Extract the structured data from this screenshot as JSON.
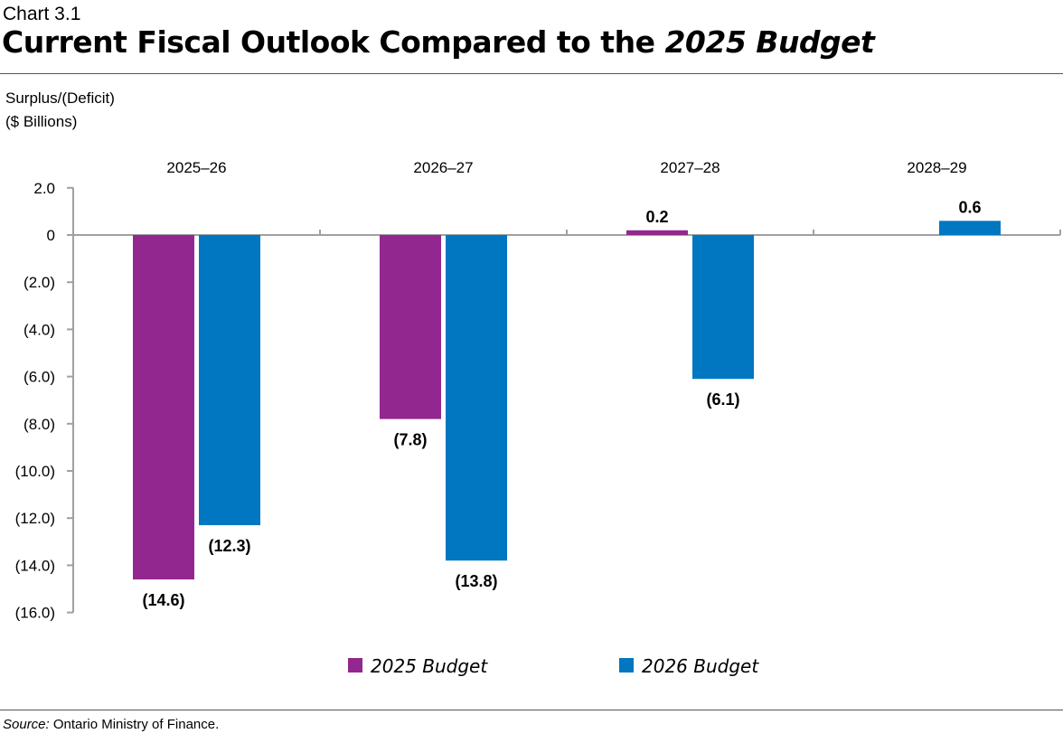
{
  "header": {
    "chart_label": "Chart 3.1",
    "title_prefix": "Current Fiscal Outlook Compared to the ",
    "title_italic": "2025 Budget"
  },
  "footer": {
    "source_label": "Source:",
    "source_text": " Ontario Ministry of Finance."
  },
  "chart_data": {
    "type": "bar",
    "title": "Current Fiscal Outlook Compared to the 2025 Budget",
    "ylabel_lines": [
      "Surplus/(Deficit)",
      "($ Billions)"
    ],
    "categories": [
      "2025–26",
      "2026–27",
      "2027–28",
      "2028–29"
    ],
    "series": [
      {
        "name": "2025 Budget",
        "color": "#92278f",
        "values": [
          -14.6,
          -7.8,
          0.2,
          null
        ],
        "labels": [
          "(14.6)",
          "(7.8)",
          "0.2",
          ""
        ]
      },
      {
        "name": "2026 Budget",
        "color": "#0077c0",
        "values": [
          -12.3,
          -13.8,
          -6.1,
          0.6
        ],
        "labels": [
          "(12.3)",
          "(13.8)",
          "(6.1)",
          "0.6"
        ]
      }
    ],
    "yticks": [
      2.0,
      0,
      -2.0,
      -4.0,
      -6.0,
      -8.0,
      -10.0,
      -12.0,
      -14.0,
      -16.0
    ],
    "ytick_labels": [
      "2.0",
      "0",
      "(2.0)",
      "(4.0)",
      "(6.0)",
      "(8.0)",
      "(10.0)",
      "(12.0)",
      "(14.0)",
      "(16.0)"
    ],
    "ylim": [
      -16,
      2
    ],
    "grid": false,
    "legend_position": "bottom"
  }
}
